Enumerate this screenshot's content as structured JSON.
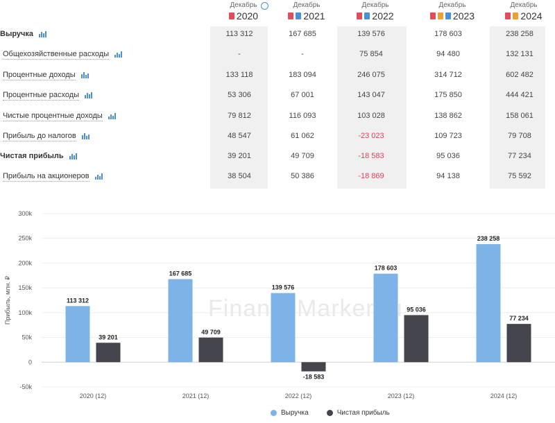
{
  "colors": {
    "revenue": "#7db3e6",
    "net_income": "#45454d",
    "negative": "#e0405a",
    "accent": "#4a90d9"
  },
  "table": {
    "years": [
      {
        "period": "Декабрь",
        "year": "2020",
        "badges": [
          "pdf"
        ],
        "info": true
      },
      {
        "period": "Декабрь",
        "year": "2021",
        "badges": [
          "pdf",
          "link"
        ],
        "info": false
      },
      {
        "period": "Декабрь",
        "year": "2022",
        "badges": [
          "pdf",
          "link"
        ],
        "info": false
      },
      {
        "period": "Декабрь",
        "year": "2023",
        "badges": [
          "pdf",
          "rep",
          "link"
        ],
        "info": false
      },
      {
        "period": "Декабрь",
        "year": "2024",
        "badges": [
          "pdf",
          "rep"
        ],
        "info": false
      }
    ],
    "rows": [
      {
        "label": "Выручка",
        "bold": true,
        "values": [
          "113 312",
          "167 685",
          "139 576",
          "178 603",
          "238 258"
        ]
      },
      {
        "label": "Общехозяйственные расходы",
        "bold": false,
        "values": [
          "-",
          "-",
          "75 854",
          "94 480",
          "132 131"
        ]
      },
      {
        "label": "Процентные доходы",
        "bold": false,
        "values": [
          "133 118",
          "183 094",
          "246 075",
          "314 712",
          "602 482"
        ]
      },
      {
        "label": "Процентные расходы",
        "bold": false,
        "values": [
          "53 306",
          "67 001",
          "143 047",
          "175 850",
          "444 421"
        ]
      },
      {
        "label": "Чистые процентные доходы",
        "bold": false,
        "values": [
          "79 812",
          "116 093",
          "103 028",
          "138 862",
          "158 061"
        ]
      },
      {
        "label": "Прибыль до налогов",
        "bold": false,
        "values": [
          "48 547",
          "61 062",
          "-23 023",
          "109 723",
          "79 708"
        ]
      },
      {
        "label": "Чистая прибыль",
        "bold": true,
        "values": [
          "39 201",
          "49 709",
          "-18 583",
          "95 036",
          "77 234"
        ]
      },
      {
        "label": "Прибыль на акционеров",
        "bold": false,
        "values": [
          "38 504",
          "50 386",
          "-18 869",
          "94 138",
          "75 592"
        ]
      }
    ]
  },
  "chart_data": {
    "type": "bar",
    "categories": [
      "2020 (12)",
      "2021 (12)",
      "2022 (12)",
      "2023 (12)",
      "2024 (12)"
    ],
    "series": [
      {
        "name": "Выручка",
        "values": [
          113312,
          167685,
          139576,
          178603,
          238258
        ],
        "labels": [
          "113 312",
          "167 685",
          "139 576",
          "178 603",
          "238 258"
        ]
      },
      {
        "name": "Чистая прибыль",
        "values": [
          39201,
          49709,
          -18583,
          95036,
          77234
        ],
        "labels": [
          "39 201",
          "49 709",
          "-18 583",
          "95 036",
          "77 234"
        ]
      }
    ],
    "ylabel": "Прибыль, млн. ₽",
    "ylim": [
      -50000,
      300000
    ],
    "yticks": [
      -50000,
      0,
      50000,
      100000,
      150000,
      200000,
      250000,
      300000
    ],
    "ytick_labels": [
      "-50k",
      "0",
      "50k",
      "100k",
      "150k",
      "200k",
      "250k",
      "300k"
    ],
    "grid": true,
    "legend_position": "bottom-center",
    "watermark": "FinanceMarker.ru"
  }
}
